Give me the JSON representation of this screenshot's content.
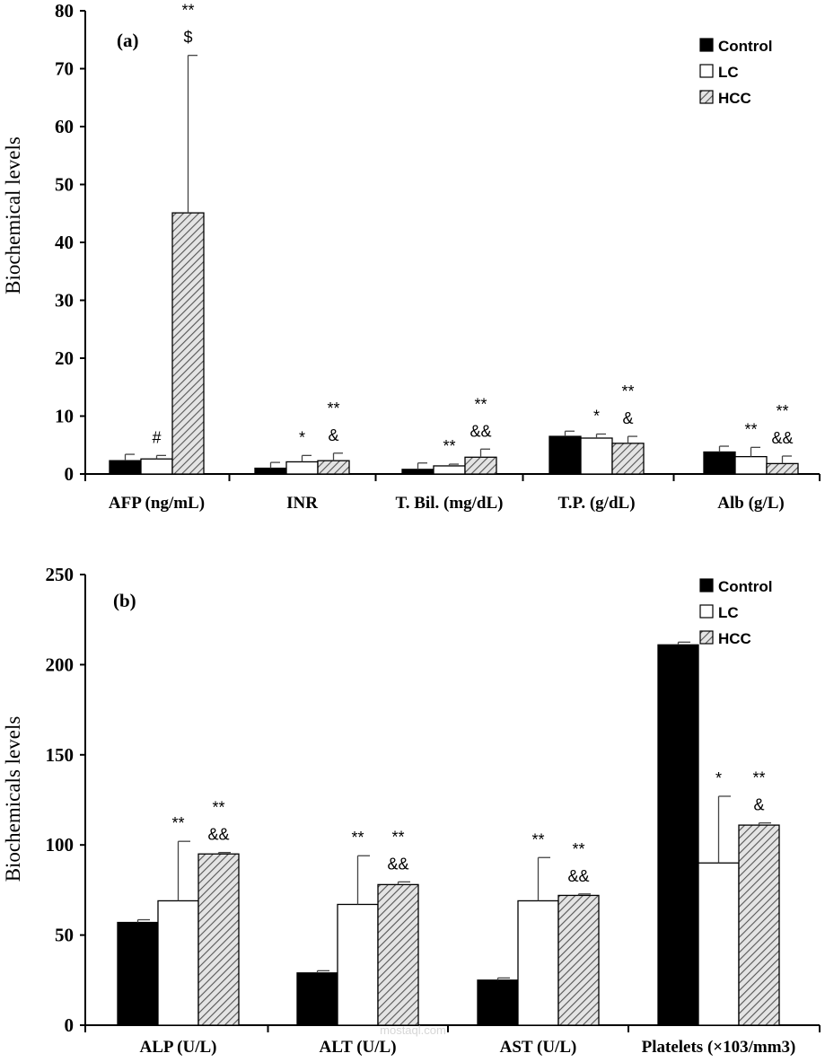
{
  "colors": {
    "control": "#000000",
    "lc": "#ffffff",
    "hcc_stripe": "#555555",
    "hcc_bg": "#e4e4e4"
  },
  "watermark": "mostaql.com",
  "chart_data": [
    {
      "type": "bar",
      "panel_label": "(a)",
      "ylabel": "Biochemical levels",
      "ylim": [
        0,
        80
      ],
      "yticks": [
        0,
        10,
        20,
        30,
        40,
        50,
        60,
        70,
        80
      ],
      "categories": [
        "AFP (ng/mL)",
        "INR",
        "T. Bil. (mg/dL)",
        "T.P. (g/dL)",
        "Alb (g/L)"
      ],
      "legend": {
        "position": "top-right",
        "entries": [
          "Control",
          "LC",
          "HCC"
        ]
      },
      "series": [
        {
          "name": "Control",
          "values": [
            2.3,
            1.0,
            0.8,
            6.5,
            3.8
          ],
          "errors": [
            1.1,
            1.0,
            1.1,
            0.9,
            1.0
          ]
        },
        {
          "name": "LC",
          "values": [
            2.6,
            2.1,
            1.4,
            6.2,
            3.0
          ],
          "errors": [
            0.6,
            1.1,
            0.3,
            0.7,
            1.6
          ]
        },
        {
          "name": "HCC",
          "values": [
            45.1,
            2.3,
            2.9,
            5.3,
            1.8
          ],
          "errors": [
            27.2,
            1.3,
            1.4,
            1.2,
            1.3
          ]
        }
      ],
      "annotations": [
        {
          "category": 0,
          "series": 1,
          "lines": [
            "#"
          ]
        },
        {
          "category": 0,
          "series": 2,
          "lines": [
            "**",
            "$"
          ]
        },
        {
          "category": 1,
          "series": 1,
          "lines": [
            "*"
          ]
        },
        {
          "category": 1,
          "series": 2,
          "lines": [
            "**",
            "&"
          ]
        },
        {
          "category": 2,
          "series": 1,
          "lines": [
            "**"
          ]
        },
        {
          "category": 2,
          "series": 2,
          "lines": [
            "**",
            "&&"
          ]
        },
        {
          "category": 3,
          "series": 1,
          "lines": [
            "*"
          ]
        },
        {
          "category": 3,
          "series": 2,
          "lines": [
            "**",
            "&"
          ]
        },
        {
          "category": 4,
          "series": 1,
          "lines": [
            "**"
          ]
        },
        {
          "category": 4,
          "series": 2,
          "lines": [
            "**",
            "&&"
          ]
        }
      ]
    },
    {
      "type": "bar",
      "panel_label": "(b)",
      "ylabel": "Biochemicals levels",
      "ylim": [
        0,
        250
      ],
      "yticks": [
        0,
        50,
        100,
        150,
        200,
        250
      ],
      "categories": [
        "ALP (U/L)",
        "ALT (U/L)",
        "AST (U/L)",
        "Platelets (×103/mm3)"
      ],
      "legend": {
        "position": "top-right",
        "entries": [
          "Control",
          "LC",
          "HCC"
        ]
      },
      "series": [
        {
          "name": "Control",
          "values": [
            57,
            29,
            25,
            211
          ],
          "errors": [
            1.5,
            1.2,
            1.2,
            1.5
          ]
        },
        {
          "name": "LC",
          "values": [
            69,
            67,
            69,
            90
          ],
          "errors": [
            33,
            27,
            24,
            37
          ]
        },
        {
          "name": "HCC",
          "values": [
            95,
            78,
            72,
            111
          ],
          "errors": [
            0.8,
            1.5,
            0.8,
            1.2
          ]
        }
      ],
      "annotations": [
        {
          "category": 0,
          "series": 1,
          "lines": [
            "**"
          ]
        },
        {
          "category": 0,
          "series": 2,
          "lines": [
            "**",
            "&&"
          ]
        },
        {
          "category": 1,
          "series": 1,
          "lines": [
            "**"
          ]
        },
        {
          "category": 1,
          "series": 2,
          "lines": [
            "**",
            "&&"
          ]
        },
        {
          "category": 2,
          "series": 1,
          "lines": [
            "**"
          ]
        },
        {
          "category": 2,
          "series": 2,
          "lines": [
            "**",
            "&&"
          ]
        },
        {
          "category": 3,
          "series": 1,
          "lines": [
            "*"
          ]
        },
        {
          "category": 3,
          "series": 2,
          "lines": [
            "**",
            "&"
          ]
        }
      ]
    }
  ]
}
